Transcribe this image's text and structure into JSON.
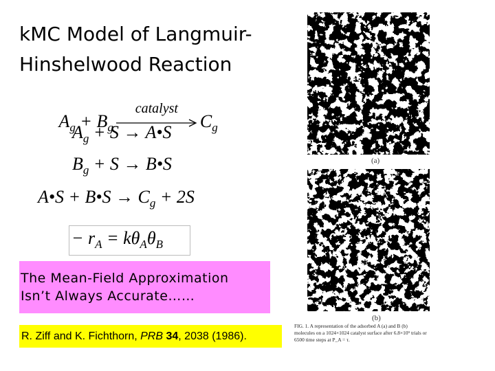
{
  "title": {
    "line1": "kMC Model of Langmuir-",
    "line2": "Hinshelwood Reaction"
  },
  "equations": [
    {
      "left": [
        "A",
        "g",
        " + B",
        "g"
      ],
      "over": "catalyst",
      "right": [
        "C",
        "g"
      ]
    },
    {
      "parts": [
        "A",
        "g",
        " + S → A•S"
      ]
    },
    {
      "parts": [
        "B",
        "g",
        " + S → B•S"
      ]
    },
    {
      "parts": [
        "A•S + B•S → C",
        "g",
        " + 2S"
      ]
    },
    {
      "parts": [
        "− r",
        "A",
        " = kθ",
        "A",
        "θ",
        "B"
      ]
    }
  ],
  "note": {
    "line1": "The  Mean-Field Approximation",
    "line2": "Isn’t Always Accurate……"
  },
  "citation": {
    "authors": "R. Ziff and K. Fichthorn,",
    "journal": "PRB",
    "volume": "34",
    "rest": ", 2038 (1986)."
  },
  "figure": {
    "label_a": "(a)",
    "label_b": "(b)",
    "caption": "FIG. 1. A representation of the adsorbed A (a) and B (b) molecules on a 1024×1024 catalyst surface after 6.8×10⁹ trials or 6500 time steps at P_A = τ."
  }
}
